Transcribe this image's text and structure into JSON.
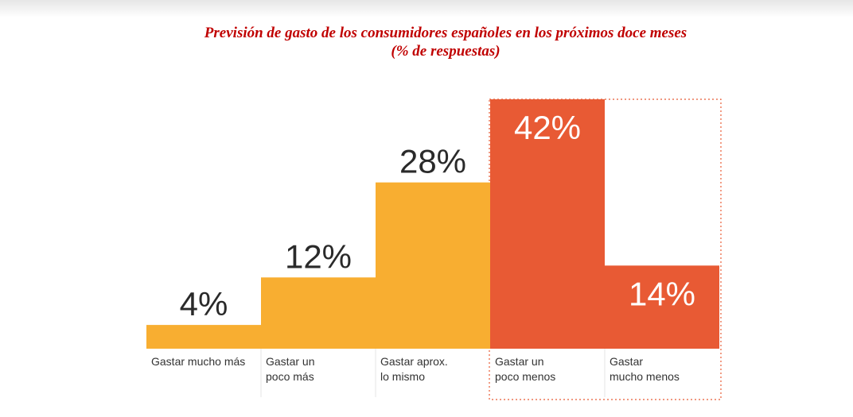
{
  "title_line1": "Previsión de gasto de los consumidores españoles en los próximos doce meses",
  "title_line2": "(% de respuestas)",
  "colors": {
    "title": "#c00000",
    "bar_yellow": "#f8ae31",
    "bar_orange": "#e85a34",
    "value_dark": "#2a2a2a",
    "value_light": "#ffffff",
    "label": "#333333",
    "highlight_border": "#e85a34"
  },
  "chart_data": {
    "type": "bar",
    "title": "Previsión de gasto de los consumidores españoles en los próximos doce meses",
    "subtitle": "(% de respuestas)",
    "categories": [
      [
        "Gastar mucho más"
      ],
      [
        "Gastar un",
        "poco más"
      ],
      [
        "Gastar aprox.",
        "lo mismo"
      ],
      [
        "Gastar un",
        "poco menos"
      ],
      [
        "Gastar",
        "mucho menos"
      ]
    ],
    "values": [
      4,
      12,
      28,
      42,
      14
    ],
    "value_labels": [
      "4%",
      "12%",
      "28%",
      "42%",
      "14%"
    ],
    "bar_colors": [
      "yellow",
      "yellow",
      "yellow",
      "orange",
      "orange"
    ],
    "value_colors": [
      "dark",
      "dark",
      "dark",
      "light",
      "light"
    ],
    "highlighted_group": [
      3,
      4
    ],
    "ylim": [
      0,
      42
    ],
    "grid": false,
    "legend": "none"
  }
}
